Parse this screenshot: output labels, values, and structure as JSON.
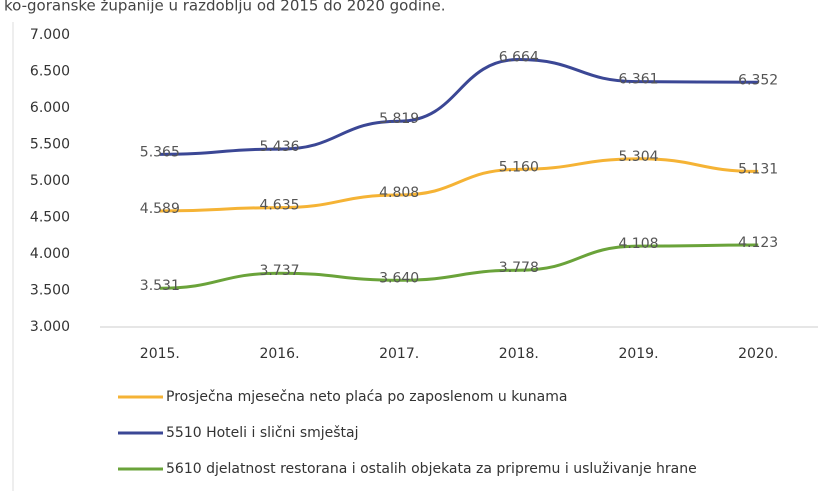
{
  "chart_data": {
    "type": "line",
    "title": "ko-goranske županije u razdoblju od 2015 do 2020 godine.",
    "categories": [
      "2015.",
      "2016.",
      "2017.",
      "2018.",
      "2019.",
      "2020."
    ],
    "series": [
      {
        "name": "Prosječna mjesečna neto plaća po zaposlenom u kunama",
        "color": "#f5b335",
        "values": [
          4589,
          4635,
          4808,
          5160,
          5304,
          5131
        ],
        "value_labels": [
          "4.589",
          "4.635",
          "4.808",
          "5.160",
          "5.304",
          "5.131"
        ]
      },
      {
        "name": "5510 Hoteli i slični smještaj",
        "color": "#3b4795",
        "values": [
          5365,
          5436,
          5819,
          6664,
          6361,
          6352
        ],
        "value_labels": [
          "5.365",
          "5.436",
          "5.819",
          "6.664",
          "6.361",
          "6.352"
        ]
      },
      {
        "name": "5610 djelatnost restorana i ostalih objekata za pripremu i usluživanje hrane",
        "color": "#6aa33a",
        "values": [
          3531,
          3737,
          3640,
          3778,
          4108,
          4123
        ],
        "value_labels": [
          "3.531",
          "3.737",
          "3.640",
          "3.778",
          "4.108",
          "4.123"
        ]
      }
    ],
    "ylim": [
      3000,
      7000
    ],
    "yticks": [
      {
        "value": 3000,
        "label": "3.000"
      },
      {
        "value": 3500,
        "label": "3.500"
      },
      {
        "value": 4000,
        "label": "4.000"
      },
      {
        "value": 4500,
        "label": "4.500"
      },
      {
        "value": 5000,
        "label": "5.000"
      },
      {
        "value": 5500,
        "label": "5.500"
      },
      {
        "value": 6000,
        "label": "6.000"
      },
      {
        "value": 6500,
        "label": "6.500"
      },
      {
        "value": 7000,
        "label": "7.000"
      }
    ],
    "legend": "bottom"
  }
}
